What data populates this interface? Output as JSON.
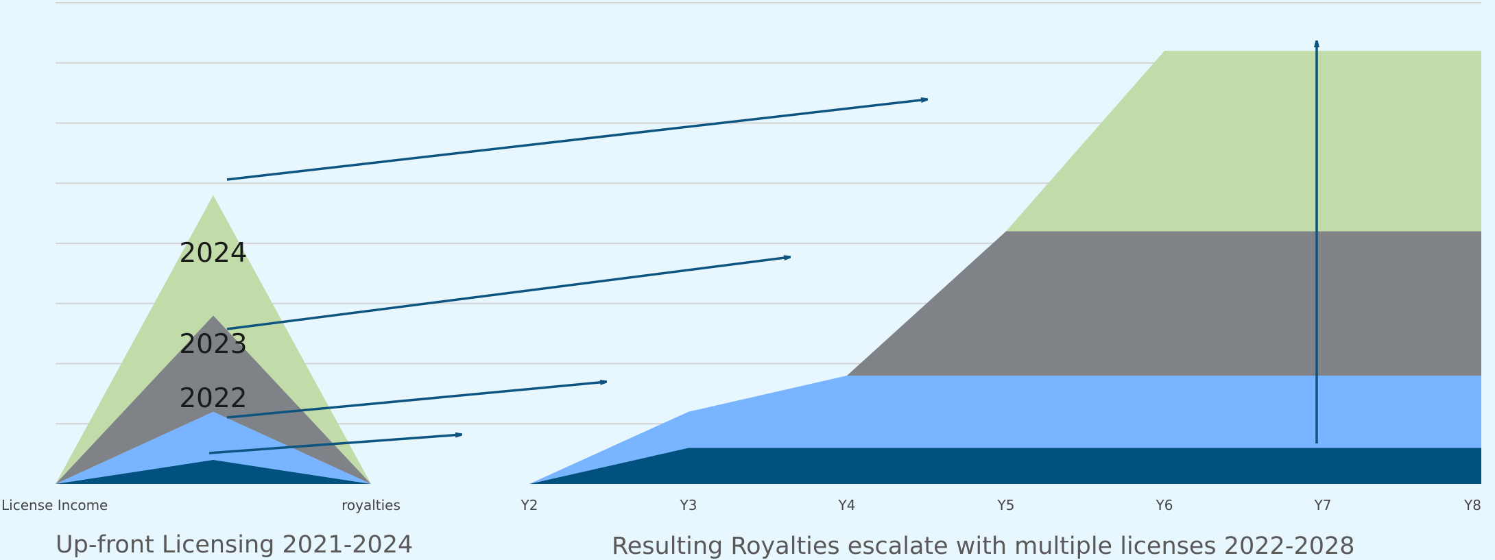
{
  "colors": {
    "background": "#e8f6fd",
    "gridline": "#d4d4d4",
    "arrow": "#0d5480",
    "series": [
      "#00517f",
      "#78b4ff",
      "#7f8287",
      "#c1dba9"
    ]
  },
  "chart_data": {
    "type": "area",
    "grid": true,
    "legend": "none",
    "ylim": [
      0,
      8
    ],
    "categories": [
      "License Income",
      "",
      "royalties",
      "Y2",
      "Y3",
      "Y4",
      "Y5",
      "Y6",
      "Y7",
      "Y8"
    ],
    "series": [
      {
        "values": [
          0,
          0.4,
          0,
          0,
          0.6,
          0.6,
          0.6,
          0.6,
          0.6,
          0.6
        ]
      },
      {
        "values": [
          0,
          0.8,
          0,
          0,
          0.6,
          1.2,
          1.2,
          1.2,
          1.2,
          1.2
        ]
      },
      {
        "values": [
          0,
          1.6,
          0,
          0,
          0,
          0,
          2.4,
          2.4,
          2.4,
          2.4
        ]
      },
      {
        "values": [
          0,
          2.0,
          0,
          0,
          0,
          0,
          0,
          3.0,
          3.0,
          3.0
        ]
      }
    ],
    "annotations": [
      "2024",
      "2023",
      "2022"
    ],
    "captions": {
      "left": "Up-front Licensing 2021-2024",
      "right": "Resulting Royalties escalate with multiple licenses 2022-2028"
    }
  }
}
